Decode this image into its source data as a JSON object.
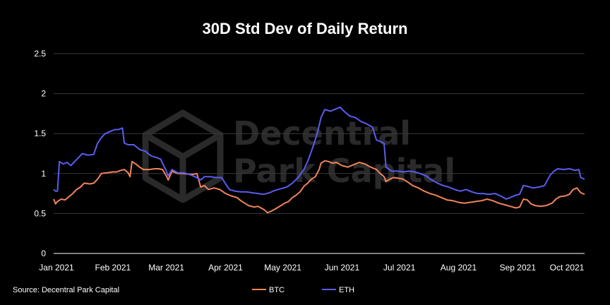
{
  "chart_data": {
    "type": "line",
    "title": "30D Std Dev of Daily Return",
    "source": "Source: Decentral Park Capital",
    "watermark": [
      "Decentral",
      "Park Capital"
    ],
    "xlabel": "",
    "ylabel": "",
    "ylim": [
      0,
      2.5
    ],
    "yticks": [
      0,
      0.5,
      1,
      1.5,
      2,
      2.5
    ],
    "ytick_labels": [
      "0",
      "0.5",
      "1",
      "1.5",
      "2",
      "2.5"
    ],
    "xlim": [
      "2021-01-01",
      "2021-10-06"
    ],
    "xticks": [
      "2021-01-01",
      "2021-02-01",
      "2021-03-01",
      "2021-04-01",
      "2021-05-01",
      "2021-06-01",
      "2021-07-01",
      "2021-08-01",
      "2021-09-01",
      "2021-10-01"
    ],
    "xtick_labels": [
      "Jan 2021",
      "Feb 2021",
      "Mar 2021",
      "Apr 2021",
      "May 2021",
      "Jun 2021",
      "Jul 2021",
      "Aug 2021",
      "Sep 2021",
      "Oct 2021"
    ],
    "grid": true,
    "legend_position": "bottom",
    "colors": {
      "BTC": "#f0845c",
      "ETH": "#5a5cf0",
      "background": "#000000",
      "grid": "#3a3a3a"
    },
    "series": [
      {
        "name": "BTC",
        "points": [
          [
            "2021-01-01",
            0.68
          ],
          [
            "2021-01-02",
            0.62
          ],
          [
            "2021-01-03",
            0.65
          ],
          [
            "2021-01-05",
            0.68
          ],
          [
            "2021-01-07",
            0.67
          ],
          [
            "2021-01-09",
            0.71
          ],
          [
            "2021-01-11",
            0.75
          ],
          [
            "2021-01-13",
            0.8
          ],
          [
            "2021-01-15",
            0.83
          ],
          [
            "2021-01-17",
            0.88
          ],
          [
            "2021-01-20",
            0.87
          ],
          [
            "2021-01-22",
            0.88
          ],
          [
            "2021-01-24",
            0.93
          ],
          [
            "2021-01-26",
            1.0
          ],
          [
            "2021-01-29",
            1.01
          ],
          [
            "2021-02-01",
            1.02
          ],
          [
            "2021-02-03",
            1.02
          ],
          [
            "2021-02-05",
            1.04
          ],
          [
            "2021-02-07",
            1.05
          ],
          [
            "2021-02-09",
            1.01
          ],
          [
            "2021-02-10",
            0.96
          ],
          [
            "2021-02-11",
            1.15
          ],
          [
            "2021-02-13",
            1.12
          ],
          [
            "2021-02-15",
            1.08
          ],
          [
            "2021-02-17",
            1.05
          ],
          [
            "2021-02-20",
            1.05
          ],
          [
            "2021-02-23",
            1.06
          ],
          [
            "2021-02-25",
            1.06
          ],
          [
            "2021-02-27",
            1.05
          ],
          [
            "2021-03-01",
            0.97
          ],
          [
            "2021-03-02",
            0.92
          ],
          [
            "2021-03-04",
            1.03
          ],
          [
            "2021-03-07",
            1.0
          ],
          [
            "2021-03-10",
            1.0
          ],
          [
            "2021-03-13",
            0.99
          ],
          [
            "2021-03-15",
            0.99
          ],
          [
            "2021-03-17",
            1.0
          ],
          [
            "2021-03-19",
            0.83
          ],
          [
            "2021-03-21",
            0.85
          ],
          [
            "2021-03-23",
            0.8
          ],
          [
            "2021-03-26",
            0.82
          ],
          [
            "2021-03-29",
            0.8
          ],
          [
            "2021-04-01",
            0.75
          ],
          [
            "2021-04-04",
            0.72
          ],
          [
            "2021-04-07",
            0.7
          ],
          [
            "2021-04-09",
            0.66
          ],
          [
            "2021-04-11",
            0.63
          ],
          [
            "2021-04-13",
            0.6
          ],
          [
            "2021-04-16",
            0.58
          ],
          [
            "2021-04-18",
            0.59
          ],
          [
            "2021-04-21",
            0.55
          ],
          [
            "2021-04-23",
            0.51
          ],
          [
            "2021-04-25",
            0.53
          ],
          [
            "2021-04-28",
            0.57
          ],
          [
            "2021-04-30",
            0.6
          ],
          [
            "2021-05-02",
            0.63
          ],
          [
            "2021-05-04",
            0.65
          ],
          [
            "2021-05-06",
            0.7
          ],
          [
            "2021-05-08",
            0.73
          ],
          [
            "2021-05-10",
            0.77
          ],
          [
            "2021-05-12",
            0.84
          ],
          [
            "2021-05-14",
            0.88
          ],
          [
            "2021-05-16",
            0.93
          ],
          [
            "2021-05-18",
            0.96
          ],
          [
            "2021-05-20",
            1.05
          ],
          [
            "2021-05-21",
            1.13
          ],
          [
            "2021-05-23",
            1.16
          ],
          [
            "2021-05-25",
            1.15
          ],
          [
            "2021-05-27",
            1.13
          ],
          [
            "2021-05-29",
            1.14
          ],
          [
            "2021-06-01",
            1.1
          ],
          [
            "2021-06-04",
            1.08
          ],
          [
            "2021-06-07",
            1.11
          ],
          [
            "2021-06-10",
            1.14
          ],
          [
            "2021-06-13",
            1.12
          ],
          [
            "2021-06-16",
            1.08
          ],
          [
            "2021-06-19",
            1.05
          ],
          [
            "2021-06-21",
            1.0
          ],
          [
            "2021-06-23",
            0.96
          ],
          [
            "2021-06-24",
            0.9
          ],
          [
            "2021-06-26",
            0.93
          ],
          [
            "2021-06-28",
            0.95
          ],
          [
            "2021-07-01",
            0.94
          ],
          [
            "2021-07-03",
            0.93
          ],
          [
            "2021-07-05",
            0.9
          ],
          [
            "2021-07-08",
            0.85
          ],
          [
            "2021-07-11",
            0.82
          ],
          [
            "2021-07-14",
            0.78
          ],
          [
            "2021-07-17",
            0.75
          ],
          [
            "2021-07-20",
            0.73
          ],
          [
            "2021-07-23",
            0.7
          ],
          [
            "2021-07-26",
            0.67
          ],
          [
            "2021-07-29",
            0.66
          ],
          [
            "2021-08-01",
            0.64
          ],
          [
            "2021-08-04",
            0.63
          ],
          [
            "2021-08-07",
            0.64
          ],
          [
            "2021-08-10",
            0.65
          ],
          [
            "2021-08-13",
            0.66
          ],
          [
            "2021-08-16",
            0.68
          ],
          [
            "2021-08-19",
            0.66
          ],
          [
            "2021-08-22",
            0.63
          ],
          [
            "2021-08-25",
            0.61
          ],
          [
            "2021-08-28",
            0.59
          ],
          [
            "2021-08-31",
            0.57
          ],
          [
            "2021-09-02",
            0.58
          ],
          [
            "2021-09-04",
            0.68
          ],
          [
            "2021-09-06",
            0.67
          ],
          [
            "2021-09-08",
            0.62
          ],
          [
            "2021-09-10",
            0.6
          ],
          [
            "2021-09-13",
            0.59
          ],
          [
            "2021-09-16",
            0.6
          ],
          [
            "2021-09-19",
            0.63
          ],
          [
            "2021-09-21",
            0.68
          ],
          [
            "2021-09-23",
            0.71
          ],
          [
            "2021-09-26",
            0.72
          ],
          [
            "2021-09-28",
            0.74
          ],
          [
            "2021-09-30",
            0.8
          ],
          [
            "2021-10-02",
            0.82
          ],
          [
            "2021-10-04",
            0.76
          ],
          [
            "2021-10-06",
            0.74
          ]
        ]
      },
      {
        "name": "ETH",
        "points": [
          [
            "2021-01-01",
            0.8
          ],
          [
            "2021-01-02",
            0.78
          ],
          [
            "2021-01-03",
            0.78
          ],
          [
            "2021-01-04",
            1.15
          ],
          [
            "2021-01-06",
            1.12
          ],
          [
            "2021-01-08",
            1.14
          ],
          [
            "2021-01-10",
            1.1
          ],
          [
            "2021-01-12",
            1.15
          ],
          [
            "2021-01-14",
            1.2
          ],
          [
            "2021-01-16",
            1.25
          ],
          [
            "2021-01-19",
            1.23
          ],
          [
            "2021-01-22",
            1.24
          ],
          [
            "2021-01-24",
            1.38
          ],
          [
            "2021-01-26",
            1.45
          ],
          [
            "2021-01-28",
            1.5
          ],
          [
            "2021-01-31",
            1.53
          ],
          [
            "2021-02-02",
            1.55
          ],
          [
            "2021-02-04",
            1.55
          ],
          [
            "2021-02-06",
            1.57
          ],
          [
            "2021-02-07",
            1.38
          ],
          [
            "2021-02-09",
            1.36
          ],
          [
            "2021-02-12",
            1.36
          ],
          [
            "2021-02-15",
            1.3
          ],
          [
            "2021-02-18",
            1.28
          ],
          [
            "2021-02-21",
            1.22
          ],
          [
            "2021-02-24",
            1.2
          ],
          [
            "2021-02-26",
            1.18
          ],
          [
            "2021-03-01",
            1.03
          ],
          [
            "2021-03-02",
            0.97
          ],
          [
            "2021-03-04",
            1.05
          ],
          [
            "2021-03-07",
            1.01
          ],
          [
            "2021-03-10",
            1.01
          ],
          [
            "2021-03-13",
            0.99
          ],
          [
            "2021-03-16",
            0.96
          ],
          [
            "2021-03-19",
            0.92
          ],
          [
            "2021-03-21",
            0.96
          ],
          [
            "2021-03-24",
            0.96
          ],
          [
            "2021-03-27",
            0.95
          ],
          [
            "2021-03-30",
            0.95
          ],
          [
            "2021-04-01",
            0.87
          ],
          [
            "2021-04-03",
            0.8
          ],
          [
            "2021-04-06",
            0.78
          ],
          [
            "2021-04-09",
            0.77
          ],
          [
            "2021-04-12",
            0.77
          ],
          [
            "2021-04-15",
            0.76
          ],
          [
            "2021-04-18",
            0.75
          ],
          [
            "2021-04-21",
            0.74
          ],
          [
            "2021-04-24",
            0.76
          ],
          [
            "2021-04-27",
            0.79
          ],
          [
            "2021-04-30",
            0.81
          ],
          [
            "2021-05-03",
            0.83
          ],
          [
            "2021-05-06",
            0.88
          ],
          [
            "2021-05-09",
            0.95
          ],
          [
            "2021-05-12",
            1.05
          ],
          [
            "2021-05-14",
            1.15
          ],
          [
            "2021-05-17",
            1.35
          ],
          [
            "2021-05-19",
            1.5
          ],
          [
            "2021-05-21",
            1.7
          ],
          [
            "2021-05-23",
            1.8
          ],
          [
            "2021-05-26",
            1.78
          ],
          [
            "2021-05-28",
            1.8
          ],
          [
            "2021-05-31",
            1.83
          ],
          [
            "2021-06-02",
            1.78
          ],
          [
            "2021-06-05",
            1.72
          ],
          [
            "2021-06-08",
            1.7
          ],
          [
            "2021-06-11",
            1.65
          ],
          [
            "2021-06-14",
            1.62
          ],
          [
            "2021-06-17",
            1.58
          ],
          [
            "2021-06-19",
            1.42
          ],
          [
            "2021-06-21",
            1.4
          ],
          [
            "2021-06-23",
            1.38
          ],
          [
            "2021-06-24",
            1.08
          ],
          [
            "2021-06-27",
            1.03
          ],
          [
            "2021-06-30",
            1.03
          ],
          [
            "2021-07-03",
            1.02
          ],
          [
            "2021-07-06",
            1.03
          ],
          [
            "2021-07-09",
            1.02
          ],
          [
            "2021-07-12",
            1.0
          ],
          [
            "2021-07-15",
            0.97
          ],
          [
            "2021-07-18",
            0.92
          ],
          [
            "2021-07-21",
            0.88
          ],
          [
            "2021-07-24",
            0.85
          ],
          [
            "2021-07-27",
            0.83
          ],
          [
            "2021-07-30",
            0.8
          ],
          [
            "2021-08-02",
            0.78
          ],
          [
            "2021-08-05",
            0.8
          ],
          [
            "2021-08-08",
            0.77
          ],
          [
            "2021-08-11",
            0.75
          ],
          [
            "2021-08-14",
            0.75
          ],
          [
            "2021-08-17",
            0.74
          ],
          [
            "2021-08-20",
            0.75
          ],
          [
            "2021-08-23",
            0.72
          ],
          [
            "2021-08-26",
            0.68
          ],
          [
            "2021-08-28",
            0.7
          ],
          [
            "2021-08-31",
            0.73
          ],
          [
            "2021-09-02",
            0.74
          ],
          [
            "2021-09-04",
            0.85
          ],
          [
            "2021-09-06",
            0.84
          ],
          [
            "2021-09-09",
            0.82
          ],
          [
            "2021-09-12",
            0.83
          ],
          [
            "2021-09-15",
            0.85
          ],
          [
            "2021-09-18",
            0.98
          ],
          [
            "2021-09-20",
            1.03
          ],
          [
            "2021-09-22",
            1.06
          ],
          [
            "2021-09-25",
            1.05
          ],
          [
            "2021-09-28",
            1.06
          ],
          [
            "2021-10-01",
            1.04
          ],
          [
            "2021-10-03",
            1.05
          ],
          [
            "2021-10-04",
            0.95
          ],
          [
            "2021-10-06",
            0.93
          ]
        ]
      }
    ]
  }
}
